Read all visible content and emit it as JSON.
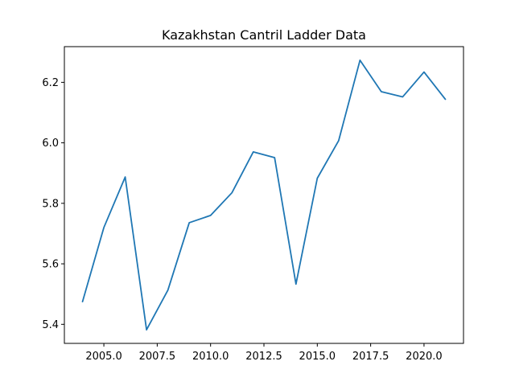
{
  "chart_data": {
    "type": "line",
    "title": "Kazakhstan Cantril Ladder Data",
    "xlabel": "",
    "ylabel": "",
    "x": [
      2004,
      2005,
      2006,
      2007,
      2008,
      2009,
      2010,
      2011,
      2012,
      2013,
      2014,
      2015,
      2016,
      2017,
      2018,
      2019,
      2020,
      2021
    ],
    "series": [
      {
        "values": [
          5.475,
          5.72,
          5.887,
          5.382,
          5.513,
          5.736,
          5.76,
          5.835,
          5.97,
          5.951,
          5.533,
          5.883,
          6.007,
          6.273,
          6.169,
          6.152,
          6.234,
          6.144
        ],
        "color": "#1f77b4"
      }
    ],
    "xlim": [
      2003.15,
      2021.85
    ],
    "ylim": [
      5.337,
      6.318
    ],
    "xticks": [
      2005.0,
      2007.5,
      2010.0,
      2012.5,
      2015.0,
      2017.5,
      2020.0
    ],
    "xtick_labels": [
      "2005.0",
      "2007.5",
      "2010.0",
      "2012.5",
      "2015.0",
      "2017.5",
      "2020.0"
    ],
    "yticks": [
      5.4,
      5.6,
      5.8,
      6.0,
      6.2
    ],
    "ytick_labels": [
      "5.4",
      "5.6",
      "5.8",
      "6.0",
      "6.2"
    ],
    "grid": false,
    "legend": "none"
  }
}
